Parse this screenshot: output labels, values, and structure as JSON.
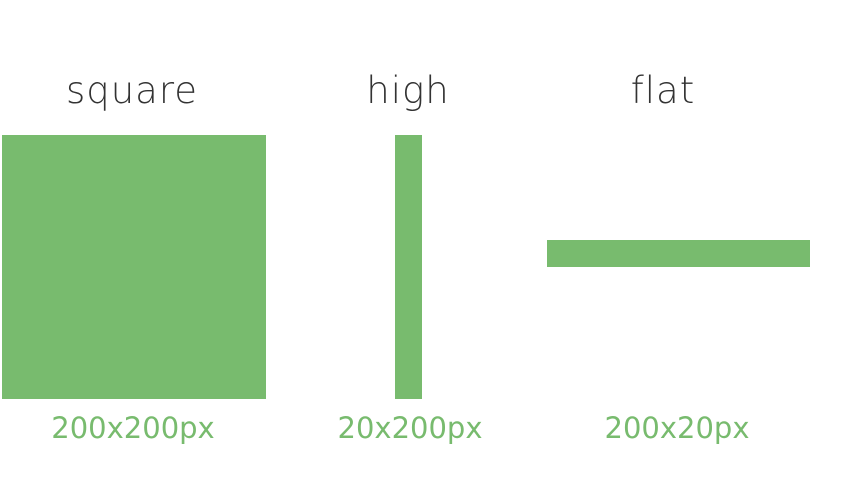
{
  "accent_color": "#78bb6e",
  "title_color": "#333333",
  "shapes": [
    {
      "title": "square",
      "dimensions": "200x200px"
    },
    {
      "title": "high",
      "dimensions": "20x200px"
    },
    {
      "title": "flat",
      "dimensions": "200x20px"
    }
  ]
}
